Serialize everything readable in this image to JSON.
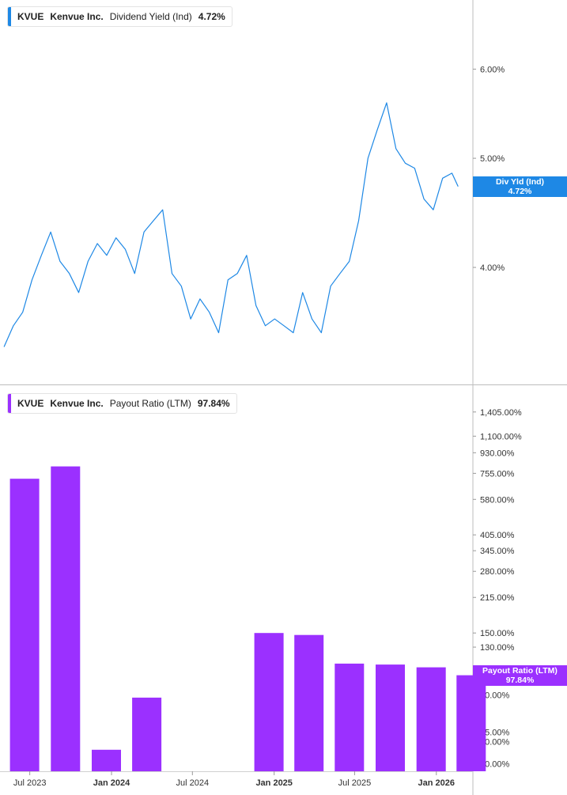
{
  "chart_data": [
    {
      "type": "line",
      "ticker": "KVUE",
      "company": "Kenvue Inc.",
      "metric": "Dividend Yield (Ind)",
      "current_value": "4.72%",
      "callout": {
        "label": "Div Yld (Ind)",
        "value": "4.72%"
      },
      "color": "#1e88e5",
      "y_scale": "log",
      "ylim": [
        3.2,
        6.8
      ],
      "y_ticks": [
        {
          "value": 6.0,
          "label": "6.00%"
        },
        {
          "value": 5.0,
          "label": "5.00%"
        },
        {
          "value": 4.0,
          "label": "4.00%"
        }
      ],
      "series": [
        {
          "x": [
            "2023-05-04",
            "2023-05-25",
            "2023-06-15",
            "2023-07-06",
            "2023-07-27",
            "2023-08-17",
            "2023-09-07",
            "2023-09-28",
            "2023-10-19",
            "2023-11-09",
            "2023-11-30",
            "2023-12-21",
            "2024-01-11",
            "2024-02-01",
            "2024-02-22",
            "2024-03-14",
            "2024-04-04",
            "2024-04-25",
            "2024-05-16",
            "2024-06-06",
            "2024-06-27",
            "2024-07-18",
            "2024-08-08",
            "2024-08-29",
            "2024-09-19",
            "2024-10-10",
            "2024-10-31",
            "2024-11-21",
            "2024-12-12",
            "2025-01-02",
            "2025-01-23",
            "2025-02-13",
            "2025-03-06",
            "2025-03-27",
            "2025-04-17",
            "2025-05-08",
            "2025-05-29",
            "2025-06-19",
            "2025-07-10",
            "2025-07-31",
            "2025-08-21",
            "2025-09-11",
            "2025-10-02",
            "2025-10-23",
            "2025-11-13",
            "2025-12-04",
            "2025-12-25",
            "2026-01-15",
            "2026-02-05",
            "2026-02-19"
          ],
          "values": [
            3.4,
            3.55,
            3.65,
            3.9,
            4.1,
            4.3,
            4.05,
            3.95,
            3.8,
            4.05,
            4.2,
            4.1,
            4.25,
            4.15,
            3.95,
            4.3,
            4.4,
            4.5,
            3.95,
            3.85,
            3.6,
            3.75,
            3.65,
            3.5,
            3.9,
            3.95,
            4.1,
            3.7,
            3.55,
            3.6,
            3.55,
            3.5,
            3.8,
            3.6,
            3.5,
            3.85,
            3.95,
            4.05,
            4.4,
            5.0,
            5.3,
            5.6,
            5.1,
            4.95,
            4.9,
            4.6,
            4.5,
            4.8,
            4.85,
            4.72
          ]
        }
      ]
    },
    {
      "type": "bar",
      "ticker": "KVUE",
      "company": "Kenvue Inc.",
      "metric": "Payout Ratio (LTM)",
      "current_value": "97.84%",
      "callout": {
        "label": "Payout Ratio (LTM)",
        "value": "97.84%"
      },
      "color": "#9b30ff",
      "y_scale": "log",
      "ylim": [
        37,
        1700
      ],
      "y_ticks": [
        {
          "value": 1405,
          "label": "1,405.00%"
        },
        {
          "value": 1100,
          "label": "1,100.00%"
        },
        {
          "value": 930,
          "label": "930.00%"
        },
        {
          "value": 755,
          "label": "755.00%"
        },
        {
          "value": 580,
          "label": "580.00%"
        },
        {
          "value": 405,
          "label": "405.00%"
        },
        {
          "value": 345,
          "label": "345.00%"
        },
        {
          "value": 280,
          "label": "280.00%"
        },
        {
          "value": 215,
          "label": "215.00%"
        },
        {
          "value": 150,
          "label": "150.00%"
        },
        {
          "value": 130,
          "label": "130.00%"
        },
        {
          "value": 80,
          "label": "80.00%"
        },
        {
          "value": 55,
          "label": "55.00%"
        },
        {
          "value": 50,
          "label": "50.00%"
        },
        {
          "value": 40,
          "label": "40.00%"
        }
      ],
      "x": [
        "2023-06-30",
        "2023-09-30",
        "2023-12-31",
        "2024-03-31",
        "2024-12-31",
        "2025-03-31",
        "2025-06-30",
        "2025-09-30",
        "2025-12-31",
        "2026-03-31"
      ],
      "values": [
        715,
        810,
        46,
        78,
        150,
        147,
        110,
        109,
        106,
        97.84
      ]
    }
  ],
  "x_axis": {
    "ticks": [
      {
        "date": "2023-07-01",
        "label": "Jul 2023",
        "bold": false
      },
      {
        "date": "2024-01-01",
        "label": "Jan 2024",
        "bold": true
      },
      {
        "date": "2024-07-01",
        "label": "Jul 2024",
        "bold": false
      },
      {
        "date": "2025-01-01",
        "label": "Jan 2025",
        "bold": true
      },
      {
        "date": "2025-07-01",
        "label": "Jul 2025",
        "bold": false
      },
      {
        "date": "2026-01-01",
        "label": "Jan 2026",
        "bold": true
      }
    ]
  }
}
